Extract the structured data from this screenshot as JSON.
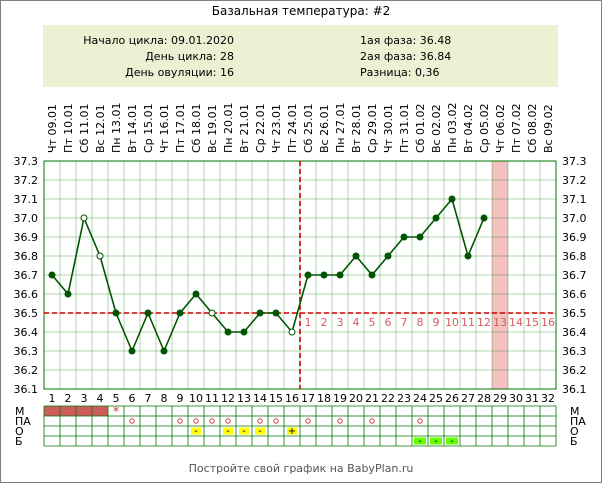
{
  "title": "Базальная температура: #2",
  "summary": {
    "cycle_start_label": "Начало цикла: 09.01.2020",
    "cycle_day_label": "День цикла: 28",
    "ovulation_day_label": "День овуляции: 16",
    "phase1_label": "1ая фаза: 36.48",
    "phase2_label": "2ая фаза: 36.84",
    "difference_label": "Разница: 0,36"
  },
  "footer": "Постройте свой график на BabyPlan.ru",
  "colors": {
    "line": "#005500",
    "coverline": "#cc0000",
    "ovulation_line": "#cc0000",
    "grid": "#007700",
    "highlight_column": "#f4c0c0",
    "menses_fill": "#cd5c5c",
    "yellow_cell": "#ffff00",
    "green_cell": "#66ff00",
    "summary_bg": "#ebf2d4"
  },
  "chart_data": {
    "type": "line",
    "title": "Базальная температура: #2",
    "x_day_numbers": [
      "1",
      "2",
      "3",
      "4",
      "5",
      "6",
      "7",
      "8",
      "9",
      "10",
      "11",
      "12",
      "13",
      "14",
      "15",
      "16",
      "17",
      "18",
      "19",
      "20",
      "21",
      "22",
      "23",
      "24",
      "25",
      "26",
      "27",
      "28",
      "29",
      "30",
      "31",
      "32"
    ],
    "x_date_labels": [
      "Чт 09.01",
      "Пт 10.01",
      "Сб 11.01",
      "Вс 12.01",
      "Пн 13.01",
      "Вт 14.01",
      "Ср 15.01",
      "Чт 16.01",
      "Пт 17.01",
      "Сб 18.01",
      "Вс 19.01",
      "Пн 20.01",
      "Вт 21.01",
      "Ср 22.01",
      "Чт 23.01",
      "Пт 24.01",
      "Сб 25.01",
      "Вс 26.01",
      "Пн 27.01",
      "Вт 28.01",
      "Ср 29.01",
      "Чт 30.01",
      "Пт 31.01",
      "Сб 01.02",
      "Вс 02.02",
      "Пн 03.02",
      "Вт 04.02",
      "Ср 05.02",
      "Чт 06.02",
      "Пт 07.02",
      "Сб 08.02",
      "Вс 09.02"
    ],
    "y_ticks": [
      "36.1",
      "36.2",
      "36.3",
      "36.4",
      "36.5",
      "36.6",
      "36.7",
      "36.8",
      "36.9",
      "37.0",
      "37.1",
      "37.2",
      "37.3"
    ],
    "ylim": [
      36.1,
      37.3
    ],
    "series": [
      {
        "values": [
          36.7,
          36.6,
          37.0,
          36.8,
          36.5,
          36.3,
          36.5,
          36.3,
          36.5,
          36.6,
          36.5,
          36.4,
          36.4,
          36.5,
          36.5,
          36.4,
          36.7,
          36.7,
          36.7,
          36.8,
          36.7,
          36.8,
          36.9,
          36.9,
          37.0,
          37.1,
          36.8,
          37.0
        ],
        "open_markers_days": [
          3,
          4,
          11,
          16
        ]
      }
    ],
    "coverline": 36.5,
    "ovulation_day": 16,
    "phase2_day_labels": [
      "1",
      "2",
      "3",
      "4",
      "5",
      "6",
      "7",
      "8",
      "9",
      "10",
      "11",
      "12",
      "13",
      "14",
      "15",
      "16"
    ],
    "highlight_day": 29,
    "grid": true
  },
  "table": {
    "row_labels": [
      "М",
      "ПА",
      "О",
      "Б"
    ],
    "menses_days": [
      1,
      2,
      3,
      4
    ],
    "menses_star_day": 5,
    "menses_star": "*",
    "pa_days": [
      6,
      9,
      10,
      11,
      12,
      14,
      15,
      17,
      19,
      21,
      24
    ],
    "pa_mark": "o",
    "o_yellow_days": [
      10,
      12,
      13,
      14,
      16
    ],
    "o_marks": [
      "-",
      "-",
      "-",
      "-",
      "+"
    ],
    "b_green_days": [
      24,
      25,
      26
    ],
    "b_mark": "-"
  }
}
